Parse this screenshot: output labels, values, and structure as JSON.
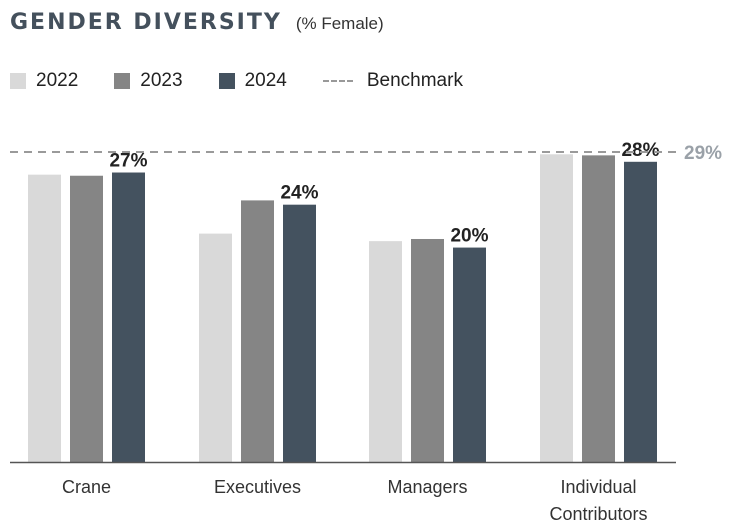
{
  "chart_data": {
    "type": "bar",
    "title": "GENDER DIVERSITY",
    "subtitle": "(% Female)",
    "categories": [
      [
        "Crane"
      ],
      [
        "Executives"
      ],
      [
        "Managers"
      ],
      [
        "Individual",
        "Contributors"
      ]
    ],
    "series": [
      {
        "name": "2022",
        "color": "#d9d9d9",
        "values": [
          26.8,
          21.3,
          20.6,
          28.7
        ]
      },
      {
        "name": "2023",
        "color": "#858585",
        "values": [
          26.7,
          24.4,
          20.8,
          28.6
        ]
      },
      {
        "name": "2024",
        "color": "#44525f",
        "values": [
          27,
          24,
          20,
          28
        ]
      }
    ],
    "data_labels": [
      "27%",
      "24%",
      "20%",
      "28%"
    ],
    "benchmark": {
      "name": "Benchmark",
      "value": 29,
      "label": "29%"
    },
    "ylim": [
      0,
      29.1
    ],
    "legend_position": "top-left",
    "grid": false
  }
}
